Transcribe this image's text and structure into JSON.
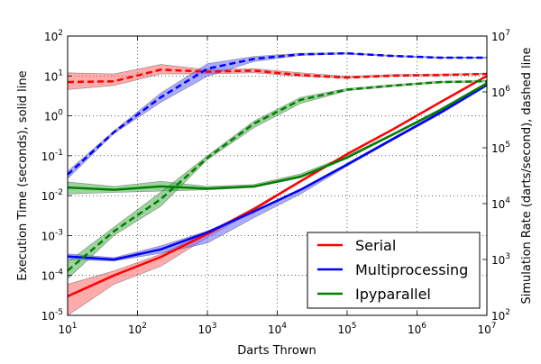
{
  "chart_data": {
    "type": "line",
    "xlabel": "Darts Thrown",
    "ylabel": "Execution Time (seconds), solid line",
    "y2label": "Simulation Rate (darts/second), dashed line",
    "x_scale": "log",
    "y_scale": "log",
    "y2_scale": "log",
    "xlim": [
      10,
      10000000
    ],
    "ylim": [
      1e-05,
      100
    ],
    "y2lim": [
      100,
      10000000
    ],
    "grid": true,
    "legend_position": "lower-right",
    "x_ticks": [
      {
        "base": "10",
        "exp": "1"
      },
      {
        "base": "10",
        "exp": "2"
      },
      {
        "base": "10",
        "exp": "3"
      },
      {
        "base": "10",
        "exp": "4"
      },
      {
        "base": "10",
        "exp": "5"
      },
      {
        "base": "10",
        "exp": "6"
      },
      {
        "base": "10",
        "exp": "7"
      }
    ],
    "y_ticks": [
      {
        "base": "10",
        "exp": "-5"
      },
      {
        "base": "10",
        "exp": "-4"
      },
      {
        "base": "10",
        "exp": "-3"
      },
      {
        "base": "10",
        "exp": "-2"
      },
      {
        "base": "10",
        "exp": "-1"
      },
      {
        "base": "10",
        "exp": "0"
      },
      {
        "base": "10",
        "exp": "1"
      },
      {
        "base": "10",
        "exp": "2"
      }
    ],
    "y2_ticks": [
      {
        "base": "10",
        "exp": "2"
      },
      {
        "base": "10",
        "exp": "3"
      },
      {
        "base": "10",
        "exp": "4"
      },
      {
        "base": "10",
        "exp": "5"
      },
      {
        "base": "10",
        "exp": "6"
      },
      {
        "base": "10",
        "exp": "7"
      }
    ],
    "x": [
      10,
      46,
      215,
      1000,
      4642,
      21544,
      100000,
      464159,
      2154435,
      10000000
    ],
    "series": [
      {
        "name": "Serial",
        "color": "#ff0000",
        "fill": "#ff6666",
        "time": [
          3e-05,
          0.0001,
          0.00029,
          0.0011,
          0.0046,
          0.023,
          0.11,
          0.47,
          2.2,
          10
        ],
        "time_low": [
          1e-05,
          6e-05,
          0.00017,
          0.0009,
          0.0042,
          0.022,
          0.105,
          0.45,
          2.1,
          9.5
        ],
        "time_high": [
          6e-05,
          0.00013,
          0.00034,
          0.0012,
          0.005,
          0.024,
          0.115,
          0.49,
          2.3,
          10.5
        ],
        "rate": [
          1500000,
          1550000,
          2500000,
          2300000,
          2400000,
          2000000,
          1800000,
          1950000,
          2000000,
          2100000
        ],
        "rate_low": [
          1100000,
          1300000,
          2100000,
          2100000,
          2200000,
          1900000,
          1750000,
          1900000,
          1950000,
          2050000
        ],
        "rate_high": [
          2200000,
          2100000,
          3100000,
          2500000,
          2600000,
          2200000,
          1900000,
          2050000,
          2100000,
          2150000
        ]
      },
      {
        "name": "Multiprocessing",
        "color": "#0000ff",
        "fill": "#6666ff",
        "time": [
          0.0003,
          0.00025,
          0.00045,
          0.0012,
          0.004,
          0.014,
          0.06,
          0.27,
          1.2,
          6
        ],
        "time_low": [
          0.00025,
          0.00023,
          0.00036,
          0.00065,
          0.0028,
          0.011,
          0.055,
          0.25,
          1.1,
          5.5
        ],
        "time_high": [
          0.00035,
          0.00028,
          0.00055,
          0.0013,
          0.0042,
          0.015,
          0.065,
          0.29,
          1.3,
          6.5
        ],
        "rate": [
          33000,
          190000,
          800000,
          2600000,
          3900000,
          4700000,
          4900000,
          4400000,
          4100000,
          4100000
        ],
        "rate_low": [
          28000,
          180000,
          650000,
          1900000,
          3500000,
          4500000,
          4800000,
          4300000,
          4000000,
          4000000
        ],
        "rate_high": [
          38000,
          200000,
          950000,
          3200000,
          4300000,
          4900000,
          5000000,
          4500000,
          4200000,
          4200000
        ]
      },
      {
        "name": "Ipyparallel",
        "color": "#008000",
        "fill": "#4caf50",
        "time": [
          0.016,
          0.014,
          0.017,
          0.015,
          0.017,
          0.03,
          0.09,
          0.35,
          1.4,
          6.5
        ],
        "time_low": [
          0.011,
          0.012,
          0.013,
          0.014,
          0.016,
          0.028,
          0.085,
          0.33,
          1.3,
          6
        ],
        "time_high": [
          0.022,
          0.017,
          0.023,
          0.017,
          0.019,
          0.035,
          0.1,
          0.37,
          1.5,
          7
        ],
        "rate": [
          630,
          3200,
          12000,
          66000,
          270000,
          720000,
          1100000,
          1300000,
          1500000,
          1550000
        ],
        "rate_low": [
          450,
          2700,
          9000,
          61000,
          230000,
          620000,
          1050000,
          1250000,
          1450000,
          1500000
        ],
        "rate_high": [
          900,
          3800,
          16000,
          72000,
          300000,
          800000,
          1150000,
          1350000,
          1550000,
          1600000
        ]
      }
    ]
  }
}
